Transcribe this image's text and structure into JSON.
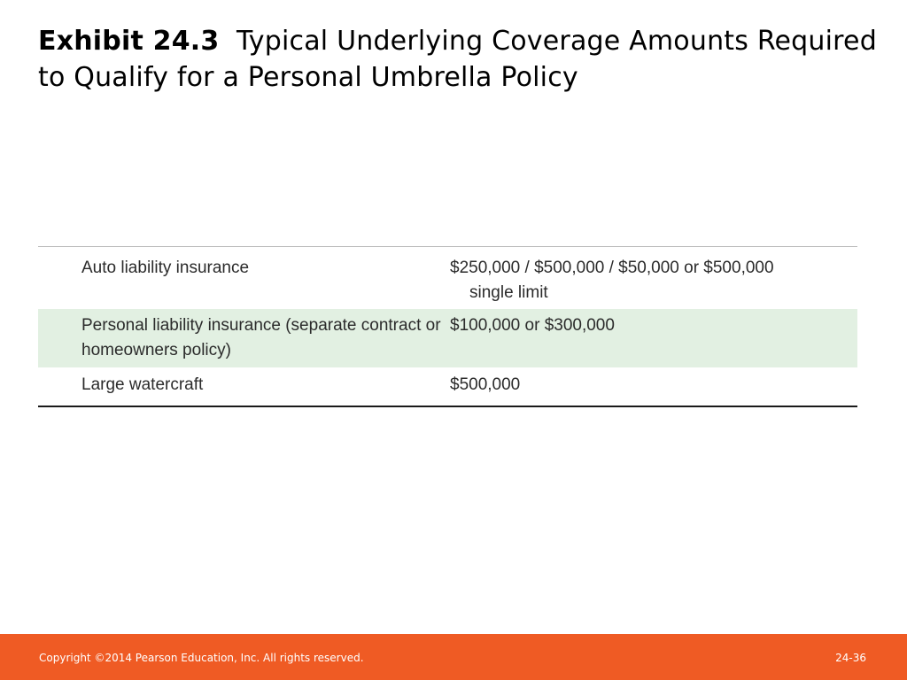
{
  "title": {
    "exhibit_label": "Exhibit 24.3",
    "text": "Typical Underlying Coverage Amounts Required to Qualify for a Personal Umbrella Policy"
  },
  "table": {
    "rows": [
      {
        "item": "Auto liability insurance",
        "amount": "$250,000 / $500,000 / $50,000 or $500,000",
        "amount_continuation": "single limit"
      },
      {
        "item": "Personal liability insurance (separate contract or homeowners policy)",
        "amount": "$100,000 or $300,000"
      },
      {
        "item": "Large watercraft",
        "amount": "$500,000"
      }
    ]
  },
  "footer": {
    "copyright": "Copyright ©2014 Pearson Education, Inc. All rights reserved.",
    "page_number": "24-36"
  },
  "colors": {
    "footer_bar": "#ef5b24",
    "highlight_row": "#e2f0e2"
  }
}
